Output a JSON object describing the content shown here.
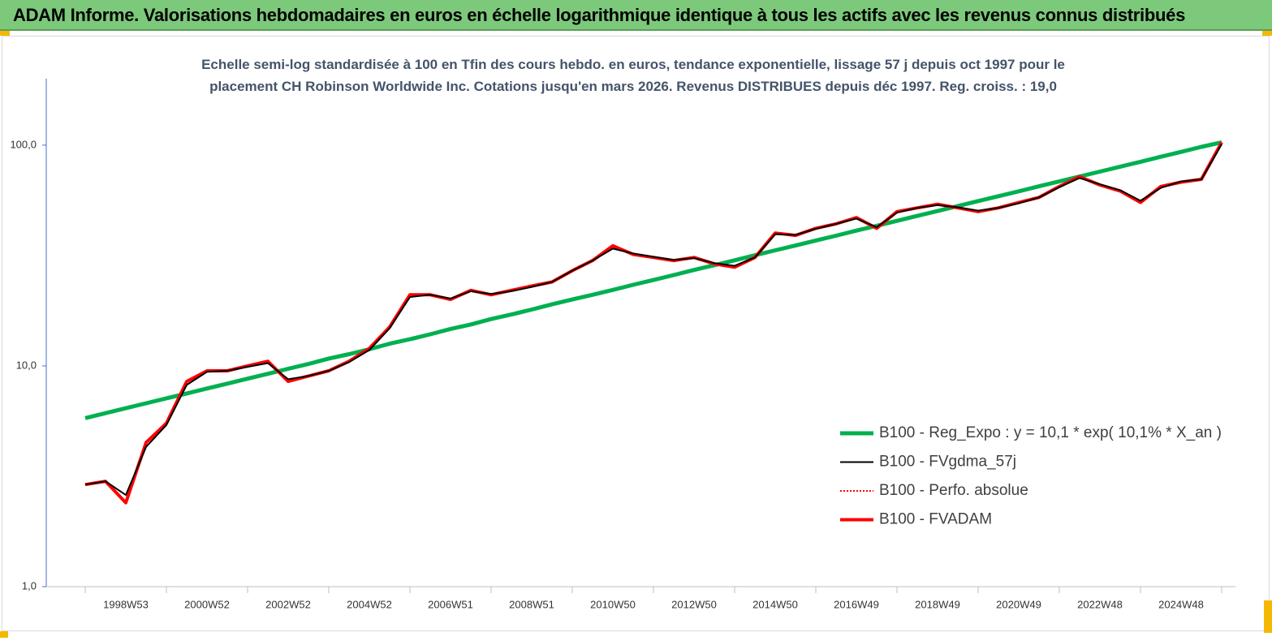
{
  "header": {
    "title": "ADAM Informe. Valorisations hebdomadaires en euros en échelle logarithmique identique à tous les actifs avec les revenus connus distribués"
  },
  "chart_data": {
    "type": "line",
    "title": "Echelle semi-log standardisée à 100 en Tfin des cours hebdo. en euros, tendance exponentielle, lissage 57 j depuis oct 1997 pour le placement CH Robinson Worldwide Inc. Cotations jusqu'en mars 2026. Revenus DISTRIBUES depuis déc 1997.  Reg. croiss. : 19,0",
    "log_scale": true,
    "legend": "lower right",
    "ylim": [
      1,
      200
    ],
    "yticks": [
      {
        "value": 1,
        "label": "1,0"
      },
      {
        "value": 10,
        "label": "10,0"
      },
      {
        "value": 100,
        "label": "100,0"
      }
    ],
    "categories": [
      null,
      null,
      "1998W53",
      null,
      null,
      null,
      "2000W52",
      null,
      null,
      null,
      "2002W52",
      null,
      null,
      null,
      "2004W52",
      null,
      null,
      null,
      "2006W51",
      null,
      null,
      null,
      "2008W51",
      null,
      null,
      null,
      "2010W50",
      null,
      null,
      null,
      "2012W50",
      null,
      null,
      null,
      "2014W50",
      null,
      null,
      null,
      "2016W49",
      null,
      null,
      null,
      "2018W49",
      null,
      null,
      null,
      "2020W49",
      null,
      null,
      null,
      "2022W48",
      null,
      null,
      null,
      "2024W48",
      null,
      null
    ],
    "series": [
      {
        "name": "B100 - Reg_Expo : y = 10,1 * exp( 10,1% *  X_an )",
        "color": "#00b050",
        "style": "solid",
        "width": 5,
        "values": [
          5.8,
          6.11,
          6.43,
          6.77,
          7.13,
          7.5,
          7.9,
          8.31,
          8.75,
          9.21,
          9.7,
          10.2,
          10.8,
          11.3,
          11.9,
          12.6,
          13.2,
          13.9,
          14.7,
          15.4,
          16.3,
          17.1,
          18.0,
          19.0,
          20.0,
          21.0,
          22.1,
          23.3,
          24.5,
          25.8,
          27.2,
          28.6,
          30.1,
          31.7,
          33.4,
          35.1,
          37.0,
          38.9,
          41.0,
          43.1,
          45.4,
          47.8,
          50.3,
          53.0,
          55.8,
          58.7,
          61.8,
          65.1,
          68.5,
          72.1,
          75.9,
          79.9,
          84.1,
          88.6,
          93.2,
          98.2,
          103
        ]
      },
      {
        "name": "B100 - FVgdma_57j",
        "color": "#000000",
        "style": "solid",
        "width": 2,
        "values": [
          2.9,
          3.0,
          2.6,
          4.3,
          5.4,
          8.2,
          9.4,
          9.5,
          9.9,
          10.3,
          8.7,
          9.0,
          9.5,
          10.4,
          11.8,
          14.8,
          20.5,
          21,
          20.2,
          21.8,
          21.2,
          21.8,
          22.8,
          24,
          27,
          30,
          34,
          32.3,
          31.2,
          30.2,
          30.8,
          29.2,
          28.4,
          31,
          39.5,
          39.2,
          41.8,
          44,
          46.5,
          42.5,
          49.5,
          52,
          53.5,
          52.3,
          50.5,
          52,
          54.5,
          58,
          64.5,
          71,
          66.5,
          62.5,
          56,
          64,
          68.5,
          70,
          101
        ]
      },
      {
        "name": "B100 - Perfo. absolue",
        "color": "#ff0000",
        "style": "dotted",
        "width": 2,
        "values": [
          2.9,
          3.0,
          2.4,
          4.5,
          5.5,
          8.5,
          9.5,
          9.5,
          10.0,
          10.5,
          8.5,
          9.0,
          9.5,
          10.5,
          12.0,
          15,
          21,
          21,
          20,
          22,
          21,
          22,
          23,
          24,
          27,
          30,
          35,
          32,
          31,
          30,
          31,
          29,
          28,
          31,
          40,
          39,
          42,
          44,
          47,
          42,
          50,
          52,
          54,
          52,
          50,
          52,
          55,
          58,
          65,
          72,
          66,
          62,
          55,
          65,
          68,
          70,
          103
        ]
      },
      {
        "name": "B100 - FVADAM",
        "color": "#ff0000",
        "style": "solid",
        "width": 4,
        "values": [
          2.9,
          3.0,
          2.4,
          4.5,
          5.5,
          8.5,
          9.5,
          9.5,
          10.0,
          10.5,
          8.5,
          9.0,
          9.5,
          10.5,
          12.0,
          15,
          21,
          21,
          20,
          22,
          21,
          22,
          23,
          24,
          27,
          30,
          35,
          32,
          31,
          30,
          31,
          29,
          28,
          31,
          40,
          39,
          42,
          44,
          47,
          42,
          50,
          52,
          54,
          52,
          50,
          52,
          55,
          58,
          65,
          72,
          66,
          62,
          55,
          65,
          68,
          70,
          103
        ]
      }
    ]
  }
}
